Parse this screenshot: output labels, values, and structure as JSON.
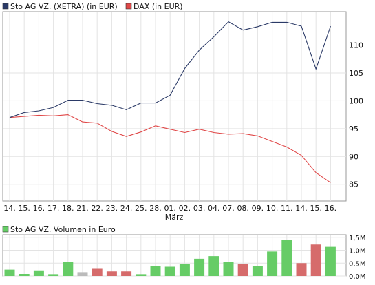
{
  "chart_data": [
    {
      "type": "line",
      "legend": [
        {
          "label": "Sto AG VZ. (XETRA) (in EUR)",
          "color": "#2b3a67"
        },
        {
          "label": "DAX (in EUR)",
          "color": "#e04848"
        }
      ],
      "categories": [
        "14.",
        "15.",
        "16.",
        "17.",
        "18.",
        "21.",
        "22.",
        "23.",
        "24.",
        "25.",
        "28.",
        "01.",
        "02.",
        "03.",
        "04.",
        "07.",
        "08.",
        "09.",
        "10.",
        "11.",
        "14.",
        "15.",
        "16."
      ],
      "x_sublabel": "März",
      "series": [
        {
          "name": "Sto AG VZ. (XETRA) (in EUR)",
          "color": "#2b3a67",
          "values": [
            97.0,
            97.9,
            98.2,
            98.8,
            100.1,
            100.1,
            99.5,
            99.2,
            98.4,
            99.6,
            99.6,
            101.0,
            105.8,
            109.1,
            111.5,
            114.2,
            112.7,
            113.3,
            114.1,
            114.1,
            113.4,
            105.7,
            113.4
          ]
        },
        {
          "name": "DAX (in EUR)",
          "color": "#e04848",
          "values": [
            97.0,
            97.2,
            97.4,
            97.3,
            97.5,
            96.2,
            96.0,
            94.5,
            93.6,
            94.4,
            95.5,
            94.9,
            94.3,
            94.9,
            94.3,
            94.0,
            94.1,
            93.7,
            92.7,
            91.7,
            90.2,
            87.1,
            85.3
          ]
        }
      ],
      "yticks": [
        85,
        90,
        95,
        100,
        105,
        110
      ],
      "ylim": [
        82,
        116
      ],
      "grid": true
    },
    {
      "type": "bar",
      "legend": [
        {
          "label": "Sto AG VZ. Volumen in Euro",
          "color": "#66cc66"
        }
      ],
      "categories": [
        "14.",
        "15.",
        "16.",
        "17.",
        "18.",
        "21.",
        "22.",
        "23.",
        "24.",
        "25.",
        "28.",
        "01.",
        "02.",
        "03.",
        "04.",
        "07.",
        "08.",
        "09.",
        "10.",
        "11.",
        "14.",
        "15.",
        "16."
      ],
      "values": [
        0.25,
        0.08,
        0.22,
        0.07,
        0.55,
        0.15,
        0.28,
        0.18,
        0.18,
        0.07,
        0.38,
        0.36,
        0.47,
        0.67,
        0.77,
        0.55,
        0.46,
        0.38,
        0.95,
        1.4,
        0.5,
        1.22,
        1.13
      ],
      "bar_colors": [
        "#66cc66",
        "#66cc66",
        "#66cc66",
        "#66cc66",
        "#66cc66",
        "#bbbbbb",
        "#d66b6b",
        "#d66b6b",
        "#d66b6b",
        "#66cc66",
        "#66cc66",
        "#66cc66",
        "#66cc66",
        "#66cc66",
        "#66cc66",
        "#66cc66",
        "#d66b6b",
        "#66cc66",
        "#66cc66",
        "#66cc66",
        "#d66b6b",
        "#d66b6b",
        "#66cc66"
      ],
      "yticks": [
        "0,0M",
        "0,5M",
        "1,0M",
        "1,5M"
      ],
      "ytick_values": [
        0,
        0.5,
        1.0,
        1.5
      ],
      "ylim": [
        0,
        1.6
      ],
      "grid": true
    }
  ]
}
